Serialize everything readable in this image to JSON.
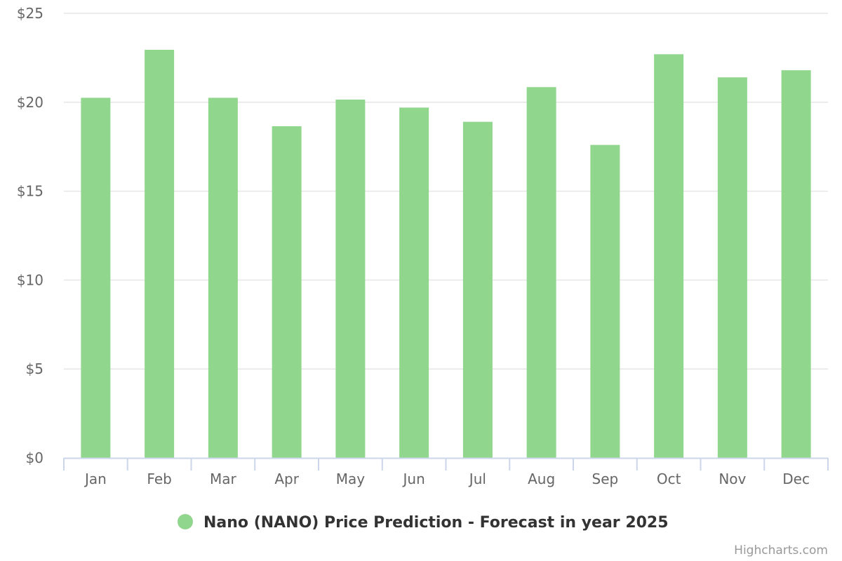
{
  "chart_data": {
    "type": "bar",
    "title": "",
    "xlabel": "",
    "ylabel": "",
    "categories": [
      "Jan",
      "Feb",
      "Mar",
      "Apr",
      "May",
      "Jun",
      "Jul",
      "Aug",
      "Sep",
      "Oct",
      "Nov",
      "Dec"
    ],
    "series": [
      {
        "name": "Nano (NANO) Price Prediction - Forecast in year 2025",
        "values": [
          20.25,
          22.95,
          20.25,
          18.65,
          20.15,
          19.7,
          18.9,
          20.85,
          17.6,
          22.7,
          21.4,
          21.8
        ]
      }
    ],
    "ylim": [
      0,
      25
    ],
    "yticks": [
      0,
      5,
      10,
      15,
      20,
      25
    ],
    "ytick_labels": [
      "$0",
      "$5",
      "$10",
      "$15",
      "$20",
      "$25"
    ],
    "grid": true,
    "legend_position": "bottom-center"
  },
  "colors": {
    "bar": "#90d68c",
    "grid": "#e6e6e6",
    "axis": "#ccd6eb",
    "label": "#666666"
  },
  "credits": "Highcharts.com"
}
